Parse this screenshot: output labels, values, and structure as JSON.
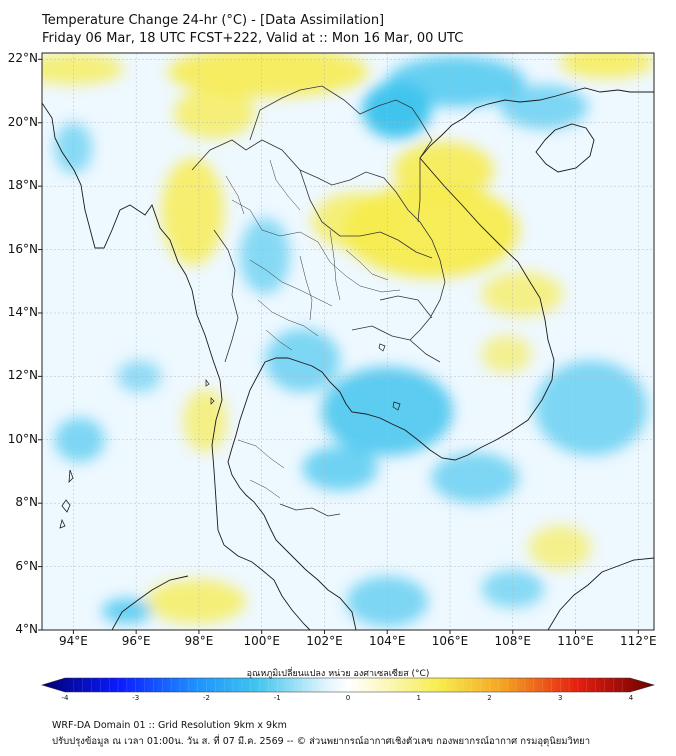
{
  "header": {
    "line1": "Temperature Change 24-hr (°C) - [Data Assimilation]",
    "line2": "Friday 06 Mar, 18 UTC FCST+222, Valid at :: Mon 16 Mar, 00 UTC"
  },
  "map": {
    "lon_range": [
      93,
      112.5
    ],
    "lat_range": [
      4,
      22.2
    ],
    "y_ticks": [
      {
        "value": 22,
        "label": "22°N"
      },
      {
        "value": 20,
        "label": "20°N"
      },
      {
        "value": 18,
        "label": "18°N"
      },
      {
        "value": 16,
        "label": "16°N"
      },
      {
        "value": 14,
        "label": "14°N"
      },
      {
        "value": 12,
        "label": "12°N"
      },
      {
        "value": 10,
        "label": "10°N"
      },
      {
        "value": 8,
        "label": "8°N"
      },
      {
        "value": 6,
        "label": "6°N"
      },
      {
        "value": 4,
        "label": "4°N"
      }
    ],
    "x_ticks": [
      {
        "value": 94,
        "label": "94°E"
      },
      {
        "value": 96,
        "label": "96°E"
      },
      {
        "value": 98,
        "label": "98°E"
      },
      {
        "value": 100,
        "label": "100°E"
      },
      {
        "value": 102,
        "label": "102°E"
      },
      {
        "value": 104,
        "label": "104°E"
      },
      {
        "value": 106,
        "label": "106°E"
      },
      {
        "value": 108,
        "label": "108°E"
      },
      {
        "value": 110,
        "label": "110°E"
      },
      {
        "value": 112,
        "label": "112°E"
      }
    ],
    "gridlines": true,
    "background_color": "#eef8ff",
    "warm_color": "#f7ec4c",
    "cool_color": "#3fc4ee",
    "warm_regions": [
      {
        "lon": 100.2,
        "lat": 21.6,
        "rlon": 3.2,
        "rlat": 0.8,
        "value": 0.8
      },
      {
        "lon": 105.4,
        "lat": 16.6,
        "rlon": 2.8,
        "rlat": 1.5,
        "value": 0.9
      },
      {
        "lon": 105.8,
        "lat": 18.5,
        "rlon": 1.6,
        "rlat": 0.9,
        "value": 0.8
      },
      {
        "lon": 103.0,
        "lat": 16.9,
        "rlon": 1.4,
        "rlat": 0.9,
        "value": 0.6
      },
      {
        "lon": 97.8,
        "lat": 17.2,
        "rlon": 1.0,
        "rlat": 1.7,
        "value": 0.7
      },
      {
        "lon": 98.5,
        "lat": 20.3,
        "rlon": 1.3,
        "rlat": 0.8,
        "value": 0.6
      },
      {
        "lon": 94.0,
        "lat": 21.7,
        "rlon": 1.6,
        "rlat": 0.5,
        "value": 0.6
      },
      {
        "lon": 111.0,
        "lat": 21.9,
        "rlon": 1.5,
        "rlat": 0.5,
        "value": 0.7
      },
      {
        "lon": 108.3,
        "lat": 14.6,
        "rlon": 1.3,
        "rlat": 0.7,
        "value": 0.5
      },
      {
        "lon": 107.8,
        "lat": 12.7,
        "rlon": 0.8,
        "rlat": 0.6,
        "value": 0.4
      },
      {
        "lon": 109.5,
        "lat": 6.6,
        "rlon": 1.0,
        "rlat": 0.7,
        "value": 0.45
      },
      {
        "lon": 98.2,
        "lat": 10.6,
        "rlon": 0.7,
        "rlat": 1.0,
        "value": 0.5
      },
      {
        "lon": 97.9,
        "lat": 4.9,
        "rlon": 1.6,
        "rlat": 0.7,
        "value": 0.6
      }
    ],
    "cool_regions": [
      {
        "lon": 104.3,
        "lat": 20.4,
        "rlon": 1.1,
        "rlat": 0.9,
        "value": -1.2
      },
      {
        "lon": 106.2,
        "lat": 21.3,
        "rlon": 2.2,
        "rlat": 0.8,
        "value": -0.8
      },
      {
        "lon": 109.0,
        "lat": 20.5,
        "rlon": 1.4,
        "rlat": 0.7,
        "value": -0.6
      },
      {
        "lon": 104.0,
        "lat": 10.9,
        "rlon": 2.1,
        "rlat": 1.4,
        "value": -0.9
      },
      {
        "lon": 101.3,
        "lat": 12.5,
        "rlon": 1.2,
        "rlat": 1.0,
        "value": -0.6
      },
      {
        "lon": 102.5,
        "lat": 9.1,
        "rlon": 1.2,
        "rlat": 0.7,
        "value": -0.7
      },
      {
        "lon": 100.1,
        "lat": 15.8,
        "rlon": 0.8,
        "rlat": 1.2,
        "value": -0.5
      },
      {
        "lon": 94.2,
        "lat": 10.0,
        "rlon": 0.8,
        "rlat": 0.7,
        "value": -0.6
      },
      {
        "lon": 94.0,
        "lat": 19.2,
        "rlon": 0.6,
        "rlat": 0.8,
        "value": -0.5
      },
      {
        "lon": 96.1,
        "lat": 12.0,
        "rlon": 0.7,
        "rlat": 0.5,
        "value": -0.4
      },
      {
        "lon": 110.5,
        "lat": 11.0,
        "rlon": 1.8,
        "rlat": 1.5,
        "value": -0.6
      },
      {
        "lon": 106.8,
        "lat": 8.8,
        "rlon": 1.4,
        "rlat": 0.8,
        "value": -0.6
      },
      {
        "lon": 104.0,
        "lat": 4.9,
        "rlon": 1.3,
        "rlat": 0.8,
        "value": -0.6
      },
      {
        "lon": 108.0,
        "lat": 5.3,
        "rlon": 1.0,
        "rlat": 0.6,
        "value": -0.5
      },
      {
        "lon": 95.7,
        "lat": 4.6,
        "rlon": 0.8,
        "rlat": 0.4,
        "value": -0.8
      }
    ],
    "coastline_color": "#1a1a1a",
    "border_color": "#333333"
  },
  "colorbar": {
    "label": "อุณหภูมิเปลี่ยนแปลง หน่วย องศาเซลเซียส (°C)",
    "min": -4,
    "max": 4,
    "ticks": [
      "-4",
      "-3",
      "-2",
      "-1",
      "0",
      "1",
      "2",
      "3",
      "4"
    ],
    "stops": [
      {
        "v": -4,
        "c": "#000070"
      },
      {
        "v": -3,
        "c": "#0a1aff"
      },
      {
        "v": -2,
        "c": "#1e90ff"
      },
      {
        "v": -1.2,
        "c": "#3fc4ee"
      },
      {
        "v": -0.3,
        "c": "#dff4fc"
      },
      {
        "v": 0,
        "c": "#ffffff"
      },
      {
        "v": 0.3,
        "c": "#fdfbd8"
      },
      {
        "v": 1.2,
        "c": "#f7ec4c"
      },
      {
        "v": 2,
        "c": "#f5a623"
      },
      {
        "v": 3,
        "c": "#e61e10"
      },
      {
        "v": 4,
        "c": "#6b0000"
      }
    ]
  },
  "footer": {
    "line1": "WRF-DA Domain 01 :: Grid Resolution 9km x 9km",
    "line2": "ปรับปรุงข้อมูล ณ เวลา 01:00น. วัน ส. ที่ 07 มี.ค. 2569 -- © ส่วนพยากรณ์อากาศเชิงตัวเลข กองพยากรณ์อากาศ กรมอุตุนิยมวิทยา"
  }
}
